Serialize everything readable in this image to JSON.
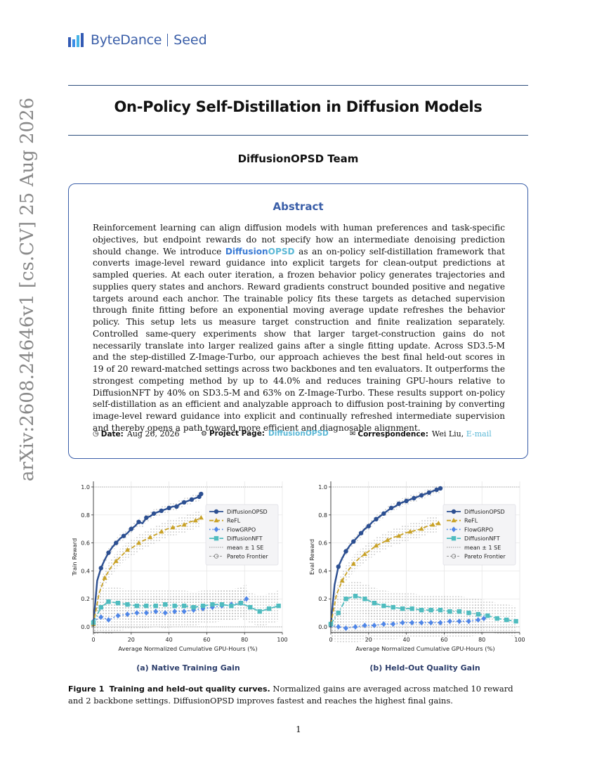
{
  "header": {
    "brand": "ByteDance",
    "brand_suffix": "Seed"
  },
  "paper": {
    "title": "On-Policy Self-Distillation in Diffusion Models",
    "team": "DiffusionOPSD Team",
    "abstract_heading": "Abstract",
    "abstract_part1": "Reinforcement learning can align diffusion models with human preferences and task-specific objectives, but endpoint rewards do not specify how an intermediate denoising prediction should change. We introduce ",
    "abstract_name_a": "Diffusion",
    "abstract_name_b": "OPSD",
    "abstract_part2": " as an on-policy self-distillation framework that converts image-level reward guidance into explicit targets for clean-output predictions at sampled queries. At each outer iteration, a frozen behavior policy generates trajectories and supplies query states and anchors. Reward gradients construct bounded positive and negative targets around each anchor. The trainable policy fits these targets as detached supervision through finite fitting before an exponential moving average update refreshes the behavior policy. This setup lets us measure target construction and finite realization separately. Controlled same-query experiments show that larger target-construction gains do not necessarily translate into larger realized gains after a single fitting update. Across SD3.5-M and the step-distilled Z-Image-Turbo, our approach achieves the best final held-out scores in 19 of 20 reward-matched settings across two backbones and ten evaluators. It outperforms the strongest competing method by up to 44.0% and reduces training GPU-hours relative to DiffusionNFT by 40% on SD3.5-M and 63% on Z-Image-Turbo. These results support on-policy self-distillation as an efficient and analyzable approach to diffusion post-training by converting image-level reward guidance into explicit and continually refreshed intermediate supervision and thereby opens a path toward more efficient and diagnosable alignment.",
    "date_label": "Date:",
    "date_value": "Aug 26, 2026",
    "project_label": "Project Page:",
    "project_value": "DiffusionOPSD",
    "corr_label": "Correspondence:",
    "corr_name": "Wei Liu,",
    "corr_link": "E-mail",
    "arxiv_id": "arXiv:2608.24646v1  [cs.CV]  25 Aug 2026",
    "figure_caption_label": "Figure 1",
    "figure_caption_bold": "Training and held-out quality curves.",
    "figure_caption_text": "Normalized gains are averaged across matched 10 reward and 2 backbone settings. DiffusionOPSD improves fastest and reaches the highest final gains.",
    "page_number": "1",
    "icons": {
      "date": "clock-icon",
      "project": "globe-icon",
      "corr": "envelope-icon"
    }
  },
  "chart_data": [
    {
      "type": "line",
      "subtitle": "(a) Native Training Gain",
      "xlabel": "Average Normalized Cumulative GPU-Hours (%)",
      "ylabel": "Train Reward",
      "xlim": [
        0,
        100
      ],
      "ylim": [
        -0.04,
        1.04
      ],
      "xticks": [
        0,
        20,
        40,
        60,
        80,
        100
      ],
      "yticks": [
        0.0,
        0.2,
        0.4,
        0.6,
        0.8,
        1.0
      ],
      "legend_position": "right",
      "legend": [
        "DiffusionOPSD",
        "ReFL",
        "FlowGRPO",
        "DiffusionNFT",
        "mean ± 1 SE",
        "Pareto Frontier"
      ],
      "series": [
        {
          "name": "DiffusionOPSD",
          "color": "#2c4f91",
          "marker": "circle",
          "x": [
            0,
            2,
            4,
            6,
            8,
            10,
            12,
            14,
            16,
            18,
            20,
            22,
            24,
            26,
            28,
            30,
            32,
            34,
            36,
            38,
            40,
            42,
            44,
            46,
            48,
            50,
            52,
            54,
            56,
            57
          ],
          "y": [
            0.02,
            0.33,
            0.42,
            0.48,
            0.53,
            0.57,
            0.6,
            0.63,
            0.65,
            0.67,
            0.7,
            0.72,
            0.75,
            0.74,
            0.78,
            0.79,
            0.81,
            0.82,
            0.83,
            0.84,
            0.85,
            0.86,
            0.86,
            0.88,
            0.89,
            0.9,
            0.91,
            0.92,
            0.93,
            0.95
          ]
        },
        {
          "name": "ReFL",
          "color": "#c9a227",
          "marker": "triangle",
          "x": [
            0,
            3,
            6,
            9,
            12,
            15,
            18,
            21,
            24,
            27,
            30,
            33,
            36,
            39,
            42,
            45,
            48,
            51,
            54,
            57
          ],
          "y": [
            0.02,
            0.24,
            0.35,
            0.42,
            0.47,
            0.51,
            0.55,
            0.57,
            0.6,
            0.62,
            0.64,
            0.66,
            0.68,
            0.7,
            0.71,
            0.72,
            0.73,
            0.75,
            0.76,
            0.78
          ]
        },
        {
          "name": "FlowGRPO",
          "color": "#4f86e8",
          "marker": "diamond",
          "x": [
            0,
            4,
            8,
            13,
            18,
            23,
            28,
            33,
            38,
            43,
            48,
            53,
            58,
            63,
            68,
            73,
            78,
            81
          ],
          "y": [
            0.04,
            0.07,
            0.05,
            0.08,
            0.09,
            0.1,
            0.1,
            0.11,
            0.1,
            0.11,
            0.11,
            0.12,
            0.13,
            0.14,
            0.15,
            0.16,
            0.17,
            0.2
          ]
        },
        {
          "name": "DiffusionNFT",
          "color": "#4fbcbf",
          "marker": "square",
          "x": [
            0,
            4,
            8,
            13,
            18,
            23,
            28,
            33,
            38,
            43,
            48,
            53,
            58,
            63,
            68,
            73,
            78,
            83,
            88,
            93,
            98
          ],
          "y": [
            0.03,
            0.14,
            0.18,
            0.17,
            0.16,
            0.15,
            0.15,
            0.15,
            0.16,
            0.15,
            0.15,
            0.14,
            0.15,
            0.16,
            0.16,
            0.15,
            0.17,
            0.14,
            0.11,
            0.13,
            0.15
          ]
        }
      ]
    },
    {
      "type": "line",
      "subtitle": "(b) Held-Out Quality Gain",
      "xlabel": "Average Normalized Cumulative GPU-Hours (%)",
      "ylabel": "Eval Reward",
      "xlim": [
        0,
        100
      ],
      "ylim": [
        -0.04,
        1.04
      ],
      "xticks": [
        0,
        20,
        40,
        60,
        80,
        100
      ],
      "yticks": [
        0.0,
        0.2,
        0.4,
        0.6,
        0.8,
        1.0
      ],
      "legend_position": "right",
      "legend": [
        "DiffusionOPSD",
        "ReFL",
        "FlowGRPO",
        "DiffusionNFT",
        "mean ± 1 SE",
        "Pareto Frontier"
      ],
      "series": [
        {
          "name": "DiffusionOPSD",
          "color": "#2c4f91",
          "marker": "circle",
          "x": [
            0,
            2,
            4,
            6,
            8,
            10,
            12,
            14,
            16,
            18,
            20,
            22,
            24,
            26,
            28,
            30,
            32,
            34,
            36,
            38,
            40,
            42,
            44,
            46,
            48,
            50,
            52,
            54,
            56,
            58
          ],
          "y": [
            0.02,
            0.3,
            0.43,
            0.49,
            0.54,
            0.58,
            0.61,
            0.64,
            0.67,
            0.7,
            0.72,
            0.75,
            0.77,
            0.79,
            0.81,
            0.83,
            0.85,
            0.86,
            0.88,
            0.89,
            0.9,
            0.91,
            0.92,
            0.93,
            0.94,
            0.95,
            0.96,
            0.97,
            0.98,
            0.99
          ]
        },
        {
          "name": "ReFL",
          "color": "#c9a227",
          "marker": "triangle",
          "x": [
            0,
            3,
            6,
            9,
            12,
            15,
            18,
            21,
            24,
            27,
            30,
            33,
            36,
            39,
            42,
            45,
            48,
            51,
            54,
            57
          ],
          "y": [
            0.02,
            0.23,
            0.33,
            0.4,
            0.45,
            0.49,
            0.52,
            0.55,
            0.58,
            0.6,
            0.62,
            0.64,
            0.65,
            0.67,
            0.68,
            0.69,
            0.7,
            0.72,
            0.73,
            0.74
          ]
        },
        {
          "name": "FlowGRPO",
          "color": "#4f86e8",
          "marker": "diamond",
          "x": [
            0,
            4,
            8,
            13,
            18,
            23,
            28,
            33,
            38,
            43,
            48,
            53,
            58,
            63,
            68,
            73,
            78,
            81
          ],
          "y": [
            0.01,
            0.0,
            -0.01,
            0.0,
            0.01,
            0.01,
            0.02,
            0.02,
            0.03,
            0.03,
            0.03,
            0.03,
            0.03,
            0.04,
            0.04,
            0.04,
            0.05,
            0.06
          ]
        },
        {
          "name": "DiffusionNFT",
          "color": "#4fbcbf",
          "marker": "square",
          "x": [
            0,
            4,
            8,
            13,
            18,
            23,
            28,
            33,
            38,
            43,
            48,
            53,
            58,
            63,
            68,
            73,
            78,
            83,
            88,
            93,
            98
          ],
          "y": [
            0.02,
            0.1,
            0.2,
            0.22,
            0.2,
            0.17,
            0.15,
            0.14,
            0.13,
            0.13,
            0.12,
            0.12,
            0.12,
            0.11,
            0.11,
            0.1,
            0.09,
            0.08,
            0.06,
            0.05,
            0.04
          ]
        }
      ]
    }
  ]
}
